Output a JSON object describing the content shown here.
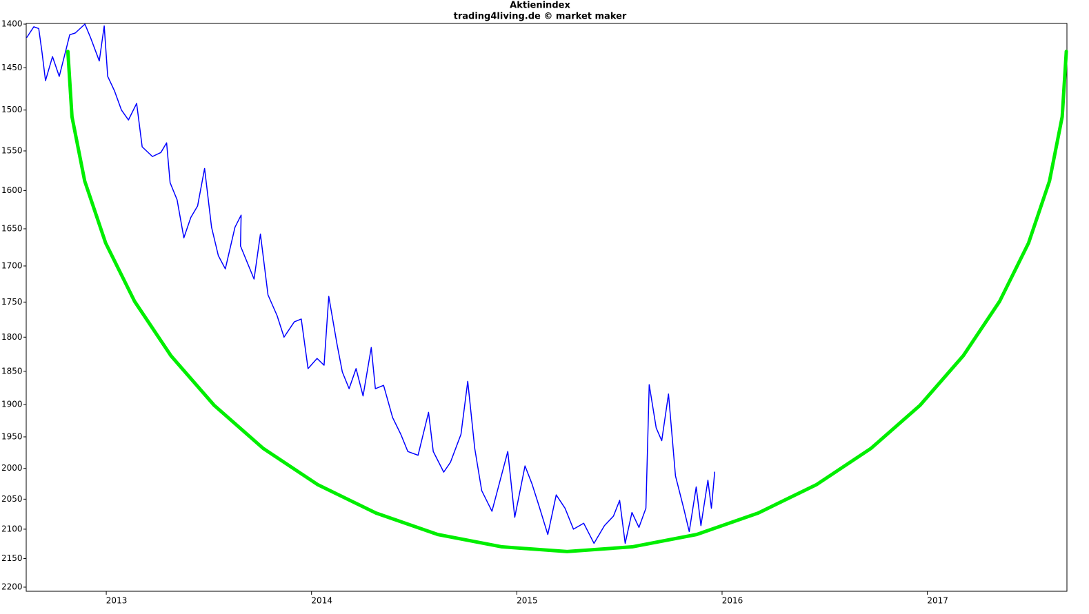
{
  "chart_data": {
    "type": "line",
    "title": "Aktienindex",
    "subtitle": "trading4living.de © market maker",
    "xlim": [
      2012.61,
      2017.68
    ],
    "xticks": [
      2013,
      2014,
      2015,
      2016,
      2017
    ],
    "ylim": [
      1400,
      2200
    ],
    "yticks": [
      1400,
      1450,
      1500,
      1550,
      1600,
      1650,
      1700,
      1750,
      1800,
      1850,
      1900,
      1950,
      2000,
      2050,
      2100,
      2150,
      2200
    ],
    "y_log": true,
    "y_inverted": true,
    "series": [
      {
        "color": "#0000ff",
        "width": 1.5,
        "x": [
          2012.613,
          2012.647,
          2012.671,
          2012.687,
          2012.704,
          2012.738,
          2012.771,
          2012.805,
          2012.822,
          2012.849,
          2012.896,
          2012.923,
          2012.966,
          2012.99,
          2013.007,
          2013.04,
          2013.074,
          2013.108,
          2013.148,
          2013.175,
          2013.225,
          2013.266,
          2013.294,
          2013.311,
          2013.345,
          2013.378,
          2013.412,
          2013.445,
          2013.479,
          2013.513,
          2013.546,
          2013.58,
          2013.627,
          2013.657,
          2013.654,
          2013.72,
          2013.751,
          2013.788,
          2013.832,
          2013.866,
          2013.916,
          2013.95,
          2013.983,
          2014.027,
          2014.061,
          2014.084,
          2014.124,
          2014.15,
          2014.183,
          2014.217,
          2014.251,
          2014.291,
          2014.311,
          2014.351,
          2014.395,
          2014.435,
          2014.469,
          2014.519,
          2014.57,
          2014.593,
          2014.644,
          2014.677,
          2014.728,
          2014.761,
          2014.795,
          2014.829,
          2014.879,
          2014.956,
          2014.99,
          2015.04,
          2015.074,
          2015.108,
          2015.151,
          2015.192,
          2015.235,
          2015.276,
          2015.326,
          2015.376,
          2015.427,
          2015.471,
          2015.501,
          2015.528,
          2015.561,
          2015.595,
          2015.629,
          2015.645,
          2015.679,
          2015.706,
          2015.739,
          2015.773,
          2015.813,
          2015.84,
          2015.874,
          2015.897,
          2015.931,
          2015.948,
          2015.964
        ],
        "y": [
          1415,
          1403,
          1405,
          1432,
          1465,
          1437,
          1460,
          1428,
          1412,
          1410,
          1400,
          1415,
          1442,
          1402,
          1460,
          1477,
          1500,
          1512,
          1492,
          1545,
          1557,
          1552,
          1540,
          1590,
          1612,
          1662,
          1635,
          1620,
          1572,
          1648,
          1686,
          1704,
          1648,
          1632,
          1673,
          1718,
          1657,
          1740,
          1769,
          1800,
          1778,
          1774,
          1846,
          1831,
          1841,
          1742,
          1810,
          1851,
          1876,
          1846,
          1887,
          1815,
          1876,
          1871,
          1920,
          1946,
          1973,
          1979,
          1912,
          1973,
          2006,
          1990,
          1946,
          1865,
          1968,
          2036,
          2070,
          1973,
          2080,
          1996,
          2025,
          2061,
          2109,
          2043,
          2065,
          2100,
          2090,
          2124,
          2094,
          2078,
          2052,
          2124,
          2072,
          2097,
          2065,
          1870,
          1936,
          1956,
          1884,
          2012,
          2065,
          2104,
          2030,
          2094,
          2019,
          2065,
          2006
        ]
      },
      {
        "color": "#00ee00",
        "width": 5,
        "x": [
          2012.813,
          2012.833,
          2012.895,
          2012.997,
          2013.138,
          2013.315,
          2013.525,
          2013.764,
          2014.029,
          2014.314,
          2014.615,
          2014.928,
          2015.245,
          2015.562,
          2015.876,
          2016.176,
          2016.461,
          2016.726,
          2016.965,
          2017.175,
          2017.352,
          2017.493,
          2017.595,
          2017.657,
          2017.677
        ],
        "y": [
          1431,
          1508,
          1588,
          1669,
          1749,
          1827,
          1901,
          1968,
          2026,
          2073,
          2109,
          2130,
          2138,
          2130,
          2109,
          2073,
          2026,
          1968,
          1901,
          1827,
          1749,
          1669,
          1588,
          1508,
          1431
        ]
      }
    ]
  }
}
